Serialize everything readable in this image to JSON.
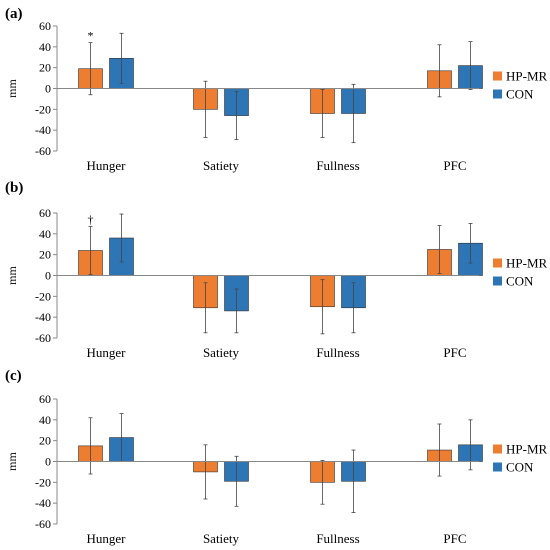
{
  "chart_data": [
    {
      "type": "bar",
      "panel_label": "(a)",
      "ylabel": "mm",
      "ylim": [
        -60,
        60
      ],
      "yticks": [
        -60,
        -40,
        -20,
        0,
        20,
        40,
        60
      ],
      "categories": [
        "Hunger",
        "Satiety",
        "Fullness",
        "PFC"
      ],
      "legend_position": "right",
      "grid": false,
      "series": [
        {
          "name": "HP-MR",
          "color": "#ED7D31",
          "values": [
            19,
            -20,
            -24,
            17
          ],
          "errors": [
            25,
            27,
            23,
            25
          ]
        },
        {
          "name": "CON",
          "color": "#2E75B6",
          "values": [
            29,
            -26,
            -24,
            22
          ],
          "errors": [
            24,
            23,
            28,
            23
          ]
        }
      ],
      "annotations": [
        {
          "text": "*",
          "category": "Hunger",
          "series": "HP-MR"
        }
      ]
    },
    {
      "type": "bar",
      "panel_label": "(b)",
      "ylabel": "mm",
      "ylim": [
        -60,
        60
      ],
      "yticks": [
        -60,
        -40,
        -20,
        0,
        20,
        40,
        60
      ],
      "categories": [
        "Hunger",
        "Satiety",
        "Fullness",
        "PFC"
      ],
      "legend_position": "right",
      "grid": false,
      "series": [
        {
          "name": "HP-MR",
          "color": "#ED7D31",
          "values": [
            24,
            -31,
            -30,
            25
          ],
          "errors": [
            23,
            24,
            26,
            23
          ]
        },
        {
          "name": "CON",
          "color": "#2E75B6",
          "values": [
            36,
            -34,
            -31,
            31
          ],
          "errors": [
            23,
            21,
            24,
            19
          ]
        }
      ],
      "annotations": [
        {
          "text": "†",
          "category": "Hunger",
          "series": "HP-MR"
        }
      ]
    },
    {
      "type": "bar",
      "panel_label": "(c)",
      "ylabel": "mm",
      "ylim": [
        -60,
        60
      ],
      "yticks": [
        -60,
        -40,
        -20,
        0,
        20,
        40,
        60
      ],
      "categories": [
        "Hunger",
        "Satiety",
        "Fullness",
        "PFC"
      ],
      "legend_position": "right",
      "grid": false,
      "series": [
        {
          "name": "HP-MR",
          "color": "#ED7D31",
          "values": [
            15,
            -10,
            -20,
            11
          ],
          "errors": [
            27,
            26,
            21,
            25
          ]
        },
        {
          "name": "CON",
          "color": "#2E75B6",
          "values": [
            23,
            -19,
            -19,
            16
          ],
          "errors": [
            23,
            24,
            30,
            24
          ]
        }
      ],
      "annotations": []
    }
  ]
}
